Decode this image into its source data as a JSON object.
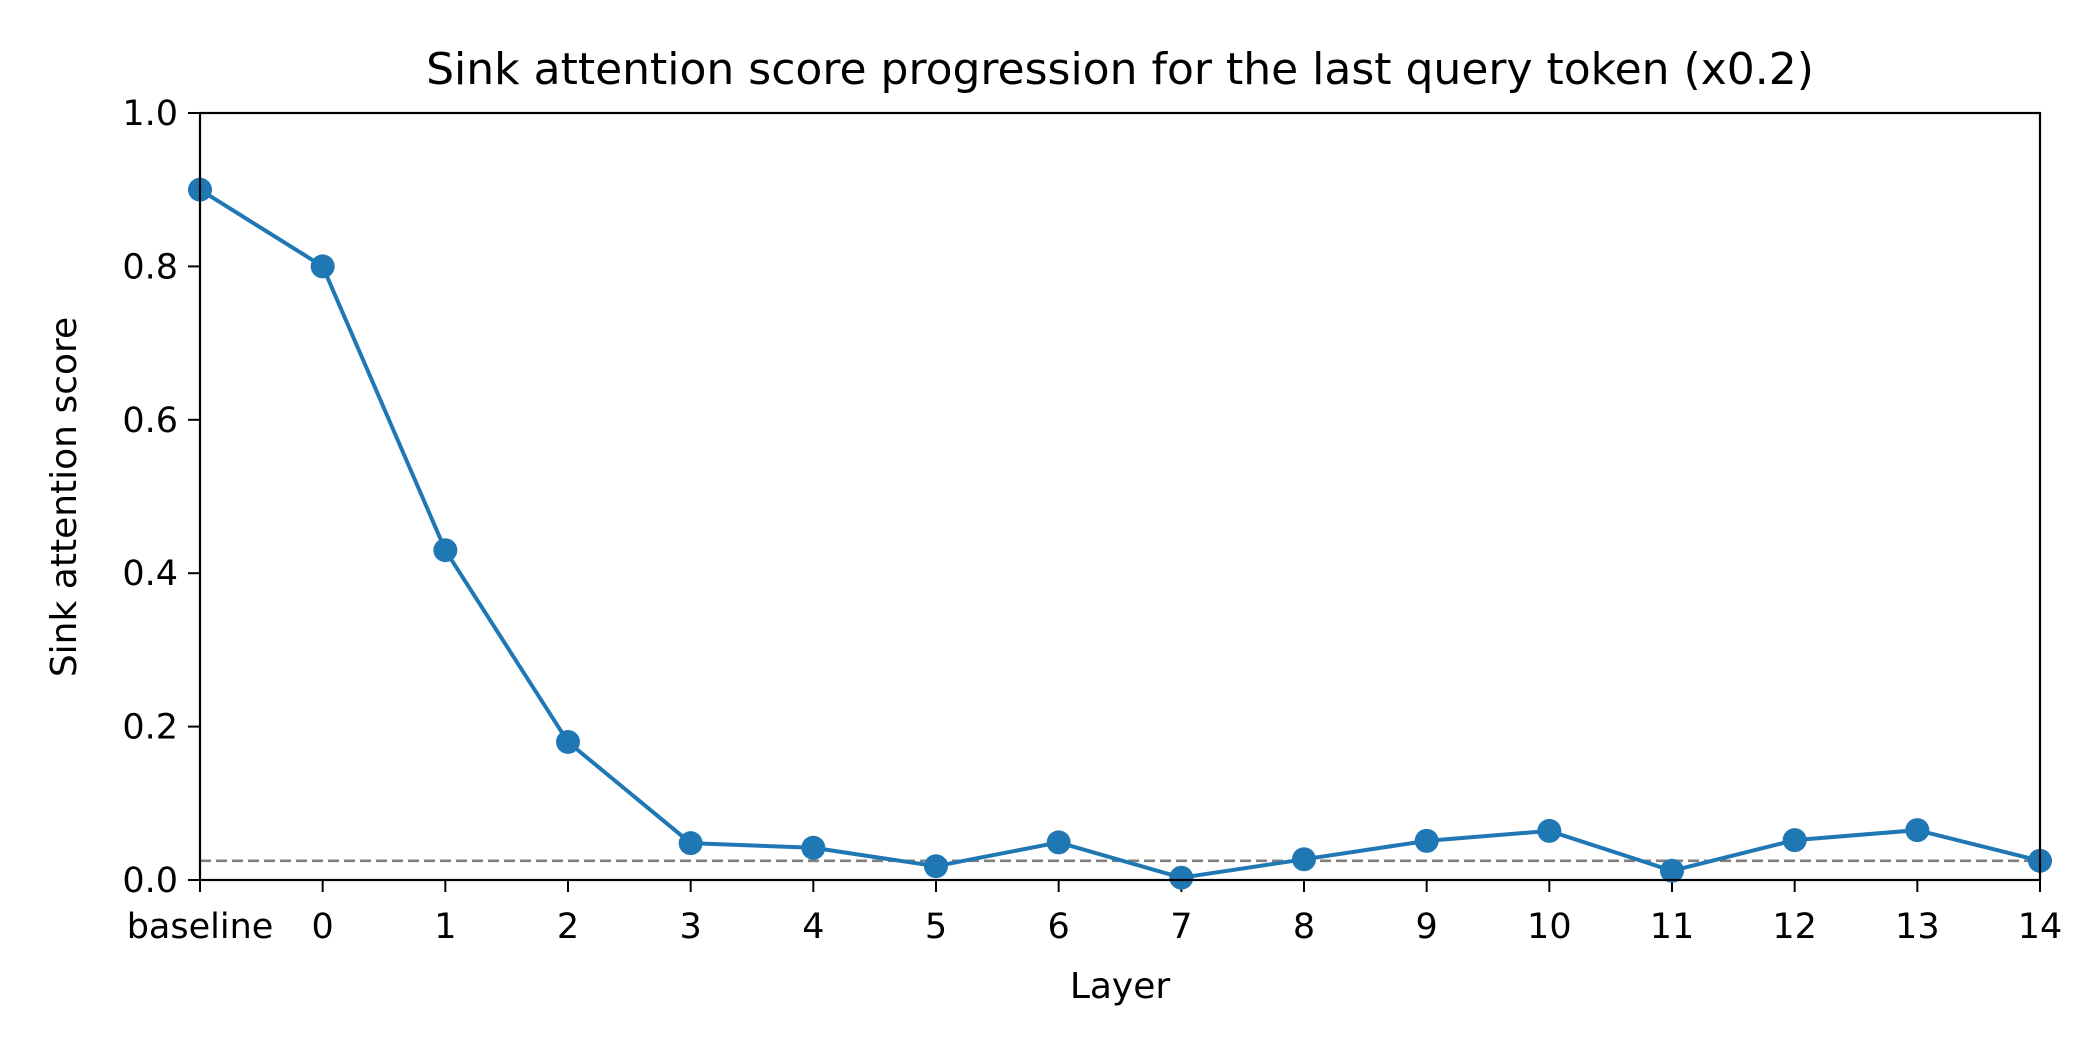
{
  "chart_data": {
    "type": "line",
    "title": "Sink attention score progression for the last query token (x0.2)",
    "xlabel": "Layer",
    "ylabel": "Sink attention score",
    "ylim": [
      0.0,
      1.0
    ],
    "yticks": [
      "0.0",
      "0.2",
      "0.4",
      "0.6",
      "0.8",
      "1.0"
    ],
    "categories": [
      "baseline",
      "0",
      "1",
      "2",
      "3",
      "4",
      "5",
      "6",
      "7",
      "8",
      "9",
      "10",
      "11",
      "12",
      "13",
      "14"
    ],
    "series": [
      {
        "values": [
          0.9,
          0.8,
          0.43,
          0.18,
          0.048,
          0.042,
          0.018,
          0.049,
          0.003,
          0.027,
          0.051,
          0.064,
          0.012,
          0.052,
          0.065,
          0.025
        ]
      }
    ],
    "reference_line": {
      "y": 0.025,
      "style": "dashed",
      "color": "#808080"
    },
    "line_color": "#1f77b4",
    "marker": "circle",
    "grid": false,
    "legend": "none"
  }
}
